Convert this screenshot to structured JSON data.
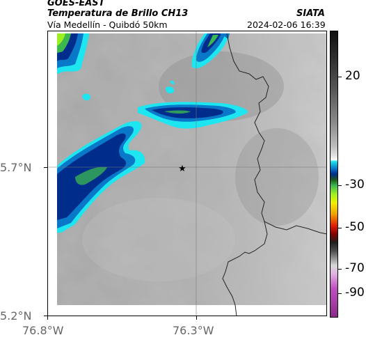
{
  "header": {
    "satellite": "GOES-EAST",
    "product": "Temperatura de Brillo CH13",
    "route": "Vía Medellín - Quibdó 50km",
    "org": "SIATA",
    "timestamp": "2024-02-06 16:39"
  },
  "map": {
    "lat_labels": [
      "5.7°N",
      "5.2°N"
    ],
    "lon_labels": [
      "76.8°W",
      "76.3°W"
    ],
    "marker": "star-icon"
  },
  "colorbar": {
    "tick_labels": [
      "20",
      "-30",
      "-50",
      "-70",
      "-90"
    ]
  },
  "colors": {
    "cold_cloud_dark": "#002c8c",
    "cold_cloud_mid": "#0a78c8",
    "cold_cloud_edge": "#1ee6f0",
    "deep_convection": "#3cb850",
    "top_cloud": "#9cf020",
    "background_gray": "#a8a8a8"
  }
}
